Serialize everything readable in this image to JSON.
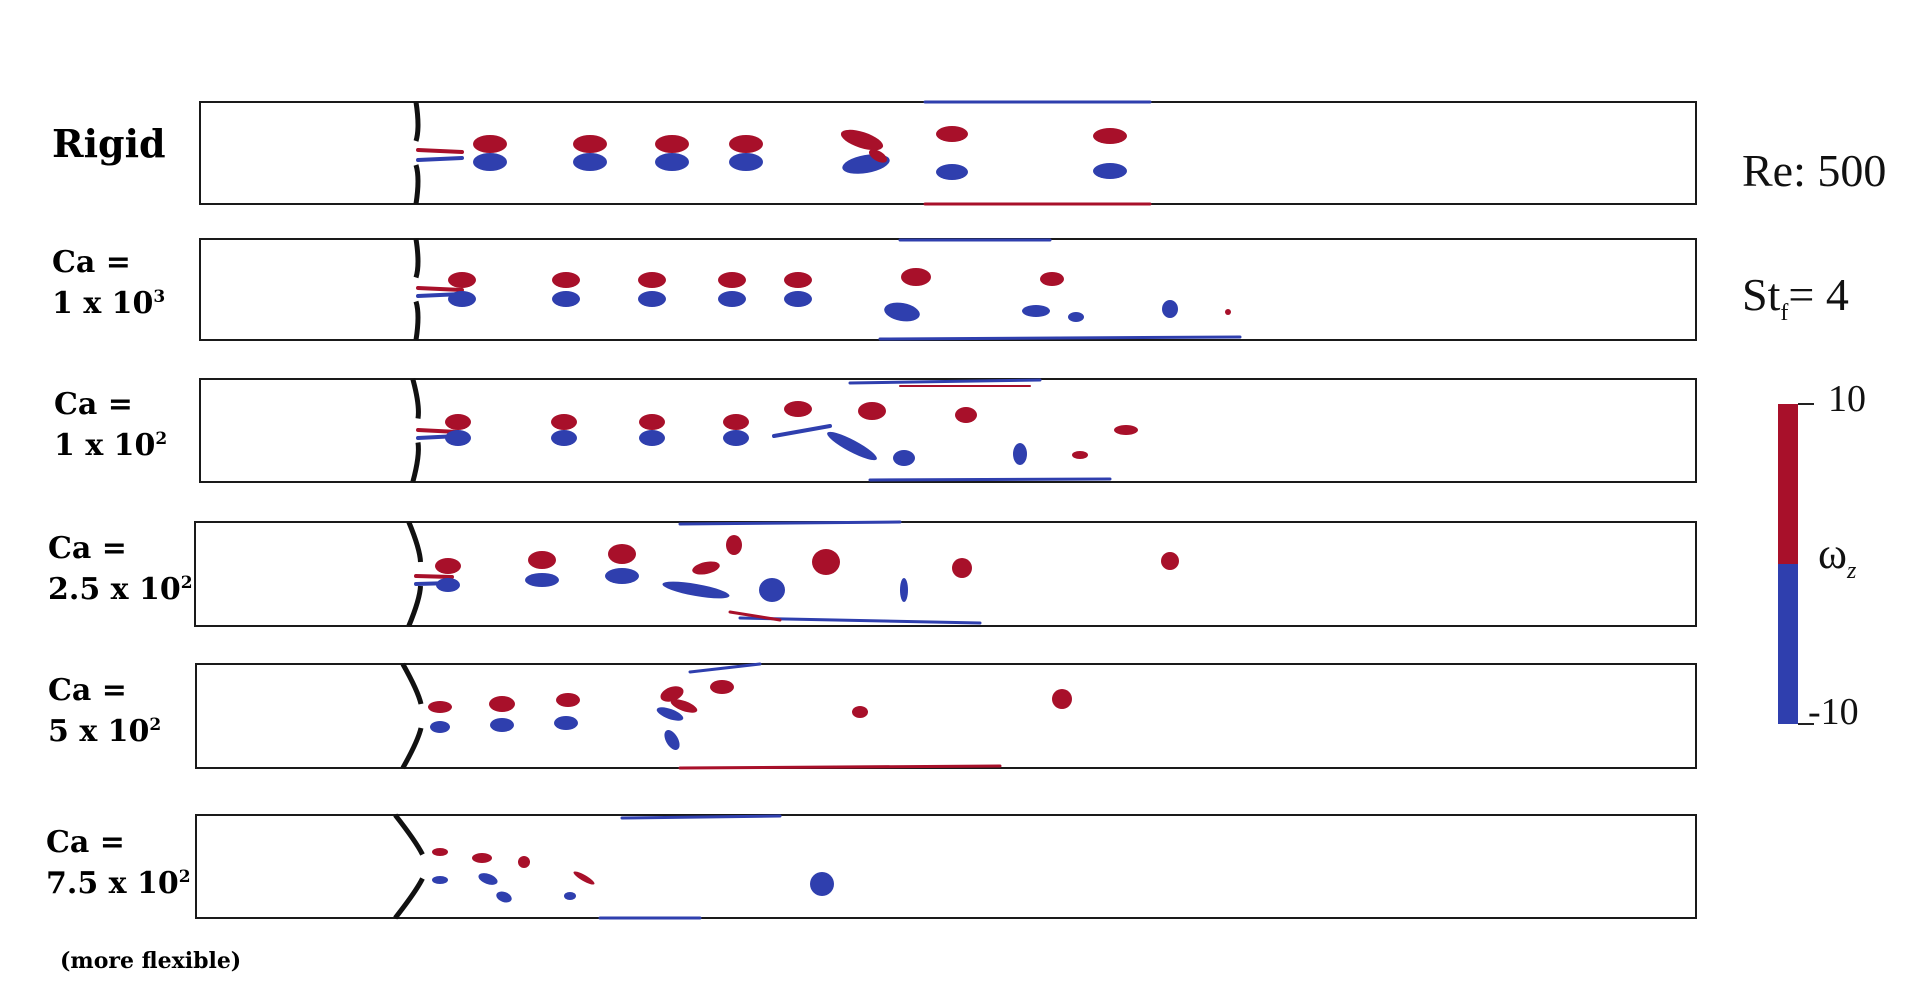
{
  "figure": {
    "panels": [
      {
        "label_line1": "Rigid",
        "label_line2": "",
        "exp": ""
      },
      {
        "label_line1": "Ca =",
        "label_line2": "1 x 10",
        "exp": "3"
      },
      {
        "label_line1": "Ca =",
        "label_line2": "1 x 10",
        "exp": "2"
      },
      {
        "label_line1": "Ca =",
        "label_line2": "2.5 x 10",
        "exp": "2"
      },
      {
        "label_line1": "Ca =",
        "label_line2": "5 x 10",
        "exp": "2"
      },
      {
        "label_line1": "Ca =",
        "label_line2": "7.5 x 10",
        "exp": "2"
      }
    ],
    "re_label": "Re: 500",
    "st_prefix": "St",
    "st_sub": "f",
    "st_suffix": "= 4",
    "colorbar": {
      "max_label": "10",
      "min_label": "-10",
      "symbol": "ω",
      "symbol_sub": "z",
      "positive_color": "#a8102a",
      "negative_color": "#2f3fae"
    },
    "footnote": "(more flexible)"
  }
}
